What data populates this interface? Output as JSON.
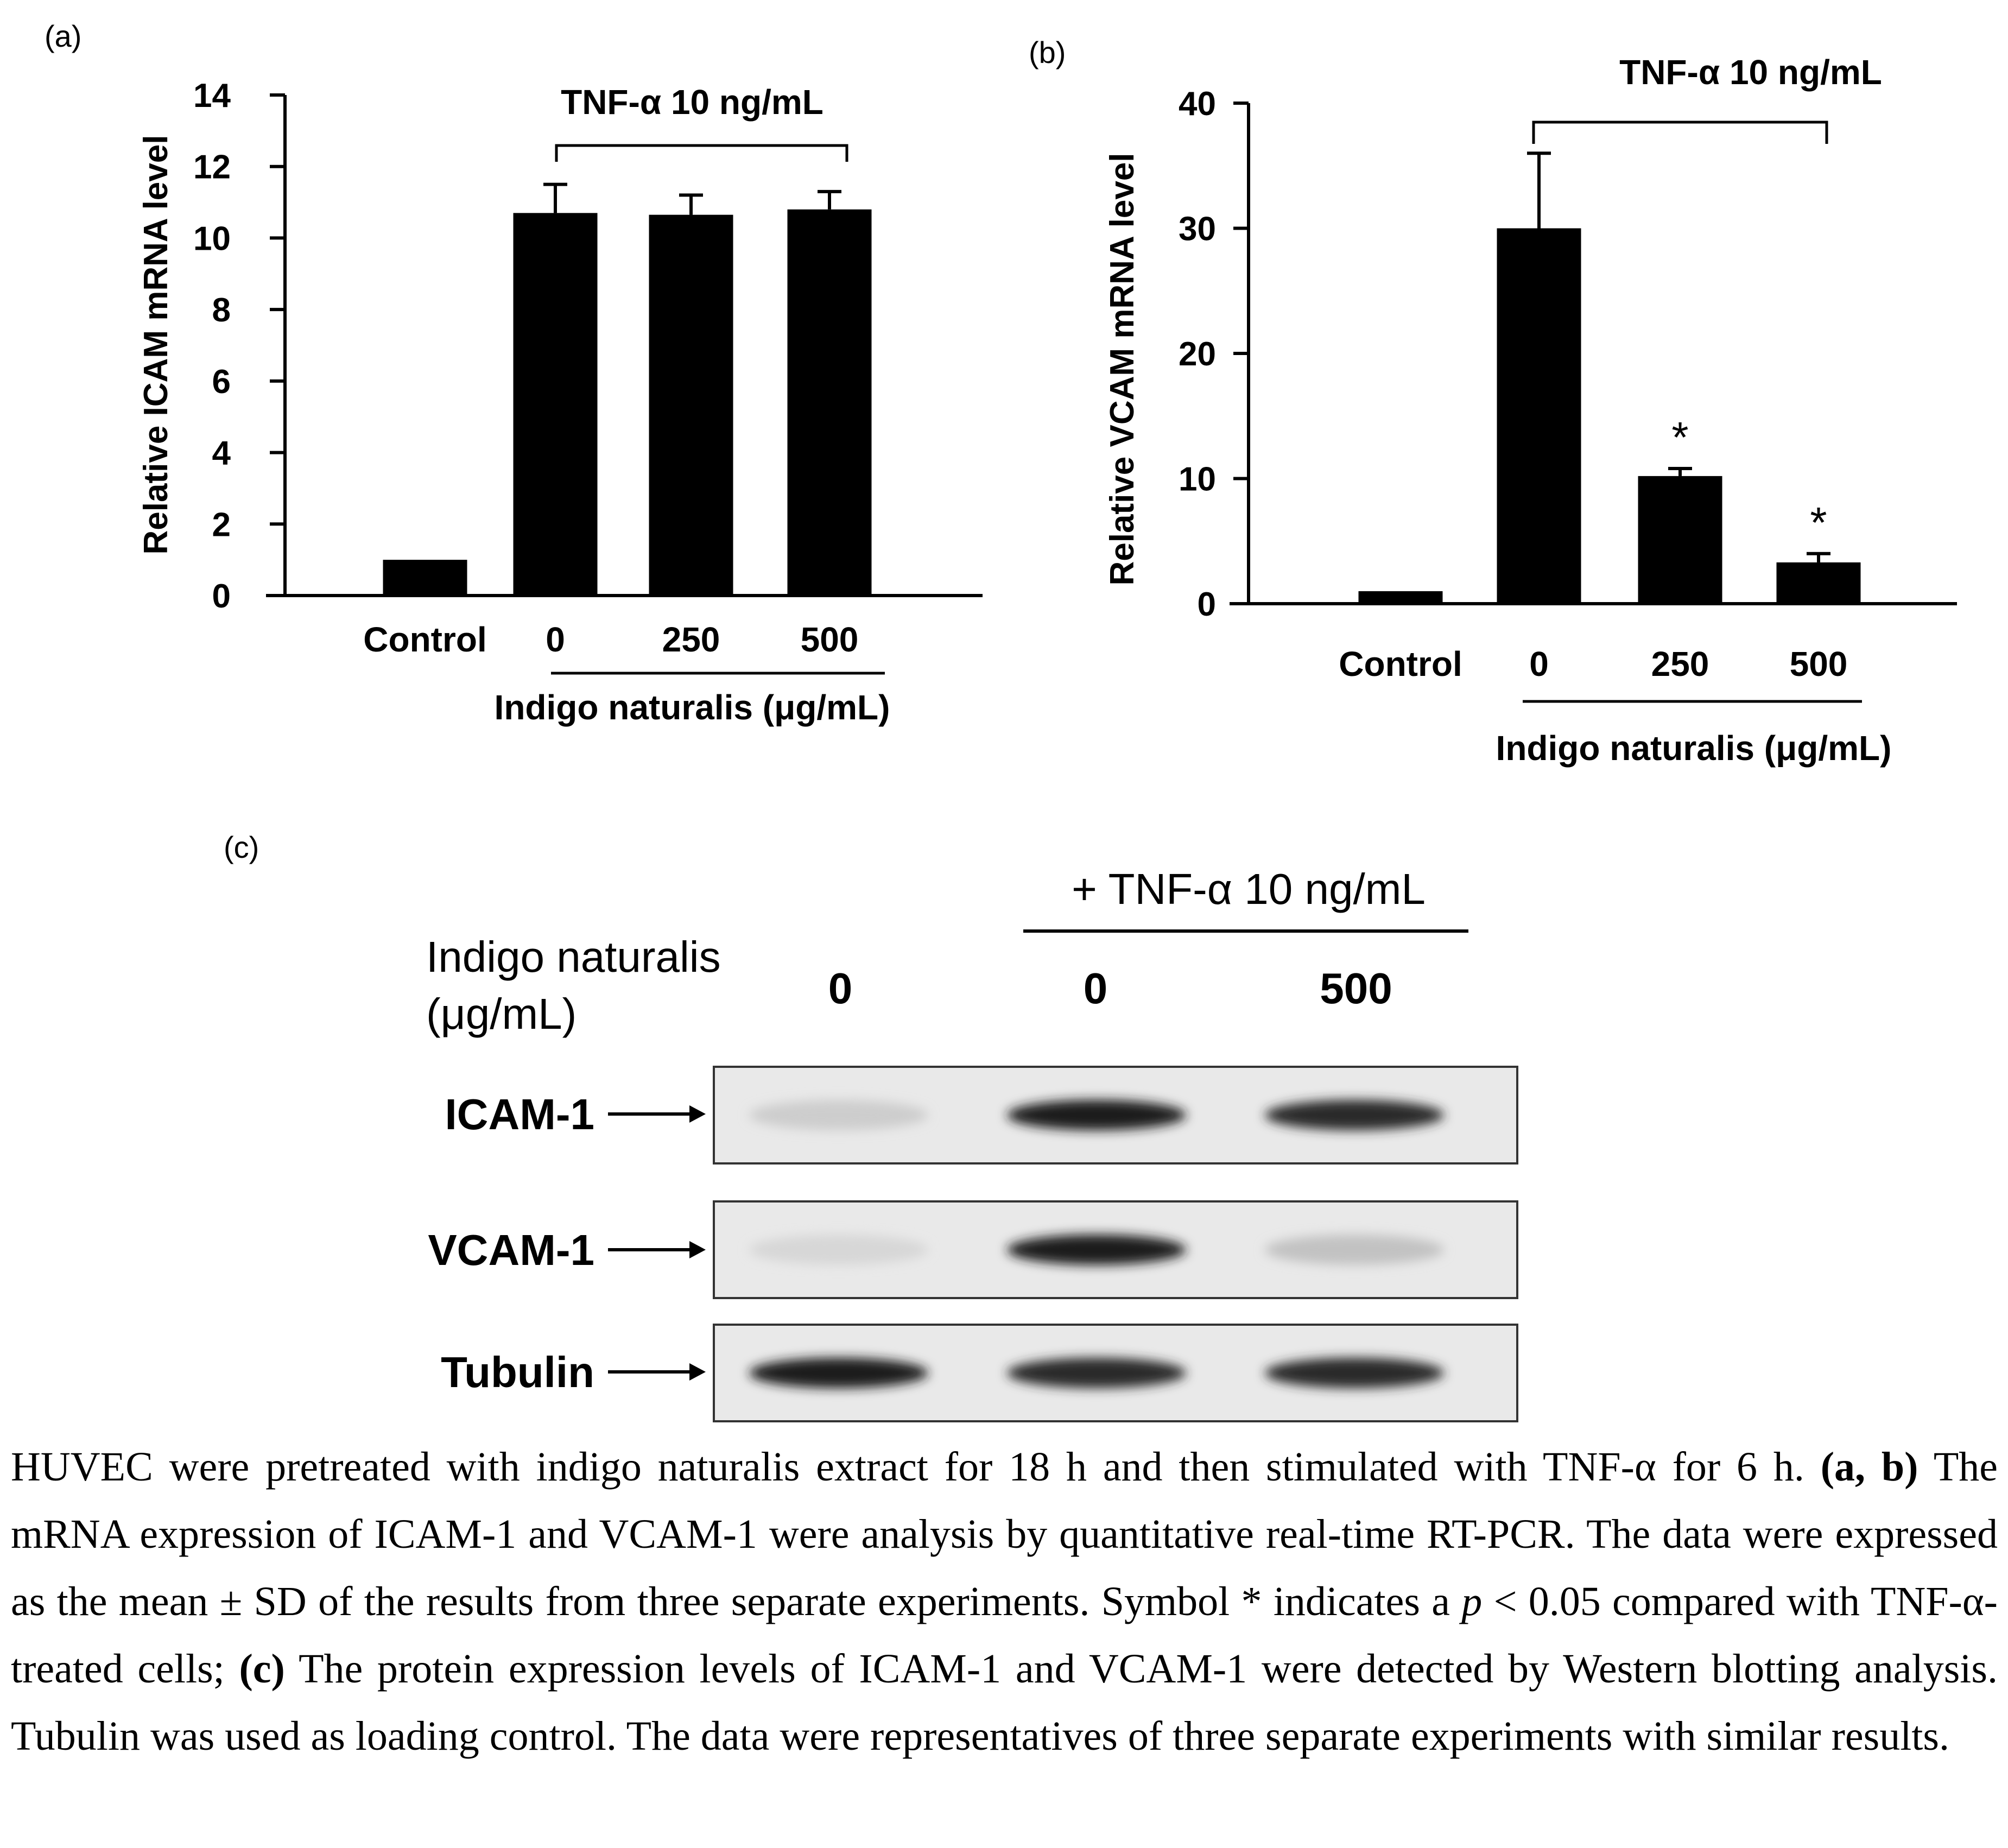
{
  "chart_data": [
    {
      "panel": "(a)",
      "type": "bar",
      "categories": [
        "Control",
        "0",
        "250",
        "500"
      ],
      "values": [
        1.0,
        10.7,
        10.65,
        10.8
      ],
      "errors": [
        0,
        0.8,
        0.55,
        0.5
      ],
      "significance": [
        "",
        "",
        "",
        ""
      ],
      "ylabel": "Relative ICAM mRNA level",
      "ylim": [
        0,
        14
      ],
      "yticks": [
        0,
        2,
        4,
        6,
        8,
        10,
        12,
        14
      ],
      "bracket_label": "TNF-α 10 ng/mL",
      "group_label": "Indigo naturalis (μg/mL)",
      "bar_color": "#000000"
    },
    {
      "panel": "(b)",
      "type": "bar",
      "categories": [
        "Control",
        "0",
        "250",
        "500"
      ],
      "values": [
        1.0,
        30.0,
        10.2,
        3.3
      ],
      "errors": [
        0,
        6.0,
        0.6,
        0.7
      ],
      "significance": [
        "",
        "",
        "*",
        "*"
      ],
      "ylabel": "Relative VCAM mRNA level",
      "ylim": [
        0,
        40
      ],
      "yticks": [
        0,
        10,
        20,
        30,
        40
      ],
      "bracket_label": "TNF-α 10 ng/mL",
      "group_label": "Indigo naturalis (μg/mL)",
      "bar_color": "#000000"
    }
  ],
  "blot": {
    "panel": "(c)",
    "header": "+ TNF-α 10 ng/mL",
    "row_label_line1": "Indigo naturalis",
    "row_label_line2": "(μg/mL)",
    "lanes": [
      "0",
      "0",
      "500"
    ],
    "rows": [
      {
        "label": "ICAM-1",
        "intensity": [
          0.1,
          0.95,
          0.9
        ]
      },
      {
        "label": "VCAM-1",
        "intensity": [
          0.05,
          0.95,
          0.15
        ]
      },
      {
        "label": "Tubulin",
        "intensity": [
          0.95,
          0.9,
          0.9
        ]
      }
    ]
  },
  "caption": {
    "intro": "HUVEC were pretreated with indigo naturalis extract for 18 h and then stimulated with TNF-α for 6 h.",
    "ab_label": "(a, b)",
    "ab_text_1": "The mRNA expression of ICAM-1 and VCAM-1 were analysis by quantitative real-time RT-PCR. The data were expressed as the mean ± SD of the results from three separate experiments. Symbol * indicates a",
    "p_symbol": "p",
    "ab_text_2": "< 0.05 compared with TNF-α-treated cells;",
    "c_label": "(c)",
    "c_text": "The protein expression levels of ICAM-1 and VCAM-1 were detected by Western blotting analysis. Tubulin was used as loading control. The data were representatives of three separate experiments with similar results."
  }
}
